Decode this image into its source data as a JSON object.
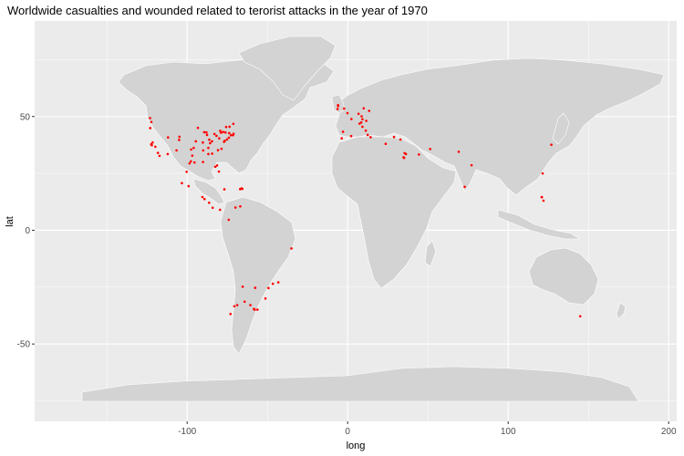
{
  "title": "Worldwide casualties and wounded related to terorist attacks in the year of 1970",
  "colors": {
    "panel": "#ebebeb",
    "grid": "#ffffff",
    "land": "#d3d3d3",
    "land_border": "#ffffff",
    "points": "#ff0000",
    "tick_text": "#4d4d4d"
  },
  "chart_data": {
    "type": "scatter",
    "title": "Worldwide casualties and wounded related to terorist attacks in the year of 1970",
    "xlabel": "long",
    "ylabel": "lat",
    "xlim": [
      -195,
      205
    ],
    "ylim": [
      -84,
      92
    ],
    "x_ticks": [
      -100,
      0,
      100,
      200
    ],
    "x_tick_labels": [
      "-100",
      "0",
      "100",
      "200"
    ],
    "y_ticks": [
      50,
      0,
      -50
    ],
    "y_tick_labels": [
      "50",
      "0",
      "-50"
    ],
    "grid": true,
    "series": [
      {
        "points": [
          [
            -122.4,
            37.8
          ],
          [
            -122.3,
            47.6
          ],
          [
            -123.0,
            44.9
          ],
          [
            -118.2,
            34.0
          ],
          [
            -117.2,
            32.7
          ],
          [
            -121.5,
            38.6
          ],
          [
            -122.0,
            37.4
          ],
          [
            -119.8,
            36.7
          ],
          [
            -112.1,
            33.5
          ],
          [
            -111.9,
            40.8
          ],
          [
            -105.0,
            39.7
          ],
          [
            -106.6,
            35.1
          ],
          [
            -104.8,
            41.1
          ],
          [
            -96.8,
            32.8
          ],
          [
            -95.4,
            29.8
          ],
          [
            -97.7,
            30.3
          ],
          [
            -98.5,
            29.4
          ],
          [
            -97.5,
            35.5
          ],
          [
            -95.9,
            36.2
          ],
          [
            -94.6,
            39.1
          ],
          [
            -90.2,
            38.6
          ],
          [
            -93.3,
            45.0
          ],
          [
            -87.6,
            41.9
          ],
          [
            -83.0,
            42.3
          ],
          [
            -81.7,
            41.5
          ],
          [
            -84.5,
            39.1
          ],
          [
            -86.2,
            39.8
          ],
          [
            -88.0,
            43.0
          ],
          [
            -89.4,
            43.1
          ],
          [
            -85.7,
            38.3
          ],
          [
            -86.8,
            36.2
          ],
          [
            -90.0,
            35.1
          ],
          [
            -84.4,
            33.7
          ],
          [
            -86.8,
            33.5
          ],
          [
            -90.1,
            30.0
          ],
          [
            -80.2,
            25.8
          ],
          [
            -82.5,
            27.9
          ],
          [
            -81.4,
            28.5
          ],
          [
            -80.8,
            35.2
          ],
          [
            -78.6,
            35.8
          ],
          [
            -77.0,
            38.9
          ],
          [
            -76.6,
            39.3
          ],
          [
            -75.2,
            39.9
          ],
          [
            -74.0,
            40.7
          ],
          [
            -73.8,
            42.7
          ],
          [
            -71.1,
            42.4
          ],
          [
            -72.7,
            41.8
          ],
          [
            -71.4,
            41.8
          ],
          [
            -80.0,
            40.4
          ],
          [
            -78.9,
            42.9
          ],
          [
            -76.1,
            43.0
          ],
          [
            -77.6,
            43.2
          ],
          [
            -73.6,
            45.5
          ],
          [
            -79.4,
            43.7
          ],
          [
            -75.7,
            45.4
          ],
          [
            -71.2,
            46.8
          ],
          [
            -123.1,
            49.3
          ],
          [
            -100.3,
            25.7
          ],
          [
            -99.1,
            19.4
          ],
          [
            -103.3,
            20.7
          ],
          [
            -90.5,
            14.6
          ],
          [
            -89.2,
            13.7
          ],
          [
            -86.3,
            12.1
          ],
          [
            -84.1,
            9.9
          ],
          [
            -79.5,
            9.0
          ],
          [
            -66.1,
            18.4
          ],
          [
            -65.6,
            18.2
          ],
          [
            -67.0,
            18.1
          ],
          [
            -76.8,
            18.0
          ],
          [
            -66.9,
            10.5
          ],
          [
            -69.9,
            10.0
          ],
          [
            -74.1,
            4.6
          ],
          [
            -35.0,
            -8.0
          ],
          [
            -43.2,
            -22.9
          ],
          [
            -46.6,
            -23.5
          ],
          [
            -49.3,
            -25.4
          ],
          [
            -51.2,
            -30.0
          ],
          [
            -56.2,
            -34.9
          ],
          [
            -58.4,
            -34.6
          ],
          [
            -57.9,
            -34.9
          ],
          [
            -60.6,
            -32.9
          ],
          [
            -64.2,
            -31.4
          ],
          [
            -68.8,
            -32.9
          ],
          [
            -65.4,
            -24.8
          ],
          [
            -57.6,
            -25.3
          ],
          [
            -70.6,
            -33.4
          ],
          [
            -73.0,
            -36.8
          ],
          [
            -0.1,
            51.5
          ],
          [
            -5.9,
            54.6
          ],
          [
            -6.3,
            53.3
          ],
          [
            -6.0,
            55.0
          ],
          [
            -2.2,
            53.5
          ],
          [
            2.35,
            48.9
          ],
          [
            8.7,
            50.1
          ],
          [
            9.2,
            48.8
          ],
          [
            11.6,
            48.1
          ],
          [
            10.0,
            53.6
          ],
          [
            6.8,
            51.2
          ],
          [
            13.4,
            52.5
          ],
          [
            8.5,
            47.4
          ],
          [
            7.4,
            46.9
          ],
          [
            11.3,
            43.8
          ],
          [
            12.5,
            41.9
          ],
          [
            9.2,
            45.5
          ],
          [
            14.3,
            40.9
          ],
          [
            -3.7,
            40.4
          ],
          [
            2.2,
            41.4
          ],
          [
            -2.9,
            43.3
          ],
          [
            23.7,
            38.0
          ],
          [
            28.9,
            41.0
          ],
          [
            32.9,
            39.9
          ],
          [
            35.5,
            33.9
          ],
          [
            35.2,
            31.8
          ],
          [
            34.8,
            32.1
          ],
          [
            36.3,
            33.5
          ],
          [
            44.4,
            33.3
          ],
          [
            51.4,
            35.7
          ],
          [
            69.2,
            34.5
          ],
          [
            77.2,
            28.6
          ],
          [
            72.9,
            19.1
          ],
          [
            120.9,
            14.6
          ],
          [
            121.0,
            14.5
          ],
          [
            122.0,
            13.0
          ],
          [
            121.5,
            25.0
          ],
          [
            126.9,
            37.6
          ],
          [
            144.9,
            -37.8
          ]
        ]
      }
    ]
  }
}
